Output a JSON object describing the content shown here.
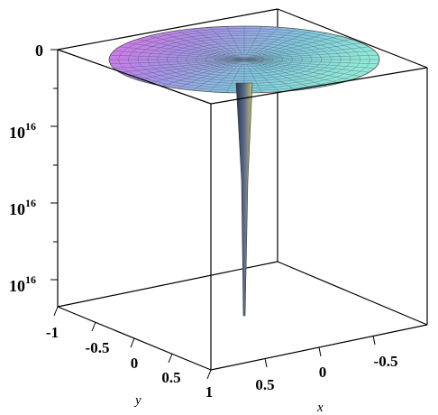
{
  "chart_data": {
    "type": "surface-3d",
    "xlabel": "x",
    "ylabel": "y",
    "zlabel": "",
    "x_ticks": [
      "-0.5",
      "0",
      "0.5"
    ],
    "y_ticks": [
      "-1",
      "-0.5",
      "0",
      "0.5",
      "1"
    ],
    "z_ticks": [
      {
        "label": "0",
        "sup": ""
      },
      {
        "label": "10",
        "sup": "16"
      },
      {
        "label": "10",
        "sup": "16"
      },
      {
        "label": "10",
        "sup": "16"
      }
    ],
    "xlim": [
      -1,
      1
    ],
    "ylim": [
      -1,
      1
    ],
    "surface": {
      "shape": "disk with a narrow spike at the origin",
      "colors": [
        "#e070e8",
        "#a890e8",
        "#80c8e0",
        "#90e8d8"
      ],
      "spike_color": "#5a6a8a"
    },
    "grid": false
  }
}
